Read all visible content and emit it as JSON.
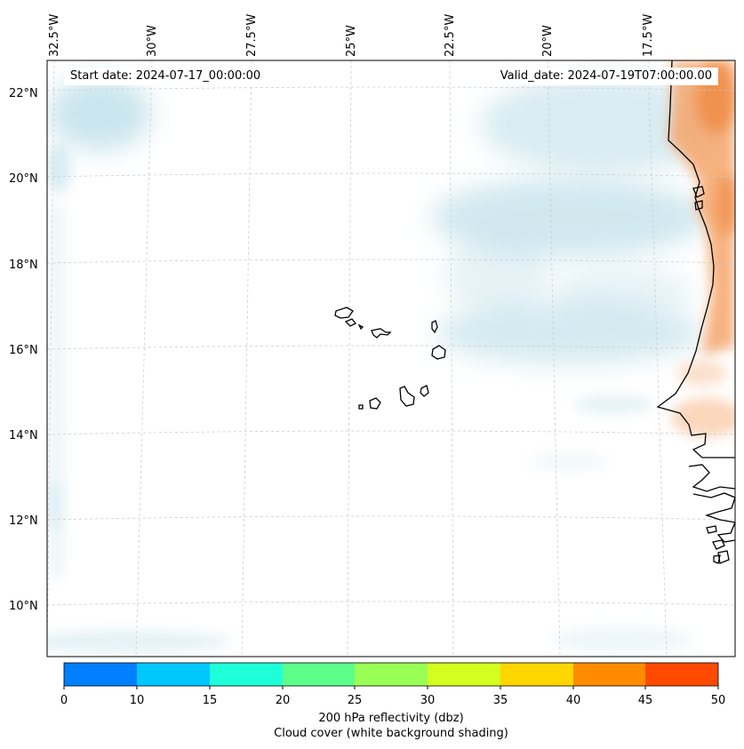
{
  "annotations": {
    "start_date": "Start date: 2024-07-17_00:00:00",
    "valid_date": "Valid_date: 2024-07-19T07:00:00.00"
  },
  "longitude_labels": [
    "32.5°W",
    "30°W",
    "27.5°W",
    "25°W",
    "22.5°W",
    "20°W",
    "17.5°W"
  ],
  "latitude_labels": [
    "22°N",
    "20°N",
    "18°N",
    "16°N",
    "14°N",
    "12°N",
    "10°N"
  ],
  "colorbar": {
    "ticks": [
      "0",
      "10",
      "15",
      "20",
      "25",
      "30",
      "35",
      "40",
      "45",
      "50"
    ],
    "colors": [
      "#0080ff",
      "#00c8ff",
      "#1effd9",
      "#5cff8a",
      "#9aff55",
      "#d4ff1e",
      "#ffd600",
      "#ff8c00",
      "#ff4a00"
    ],
    "title": "200 hPa reflectivity (dbz)",
    "subtitle": "Cloud cover (white background shading)"
  },
  "colors": {
    "cloud_shading": "#b9dde8",
    "reflectivity_warm": "#f6a56a",
    "coastline": "#000000",
    "gridline": "#cccccc"
  }
}
